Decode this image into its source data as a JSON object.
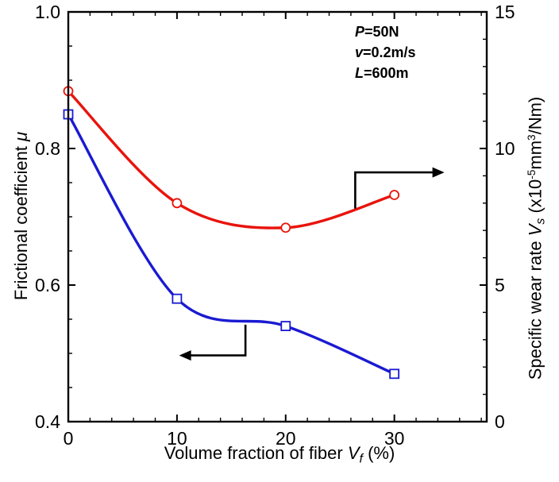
{
  "colors": {
    "friction": "#1a1ad2",
    "wear": "#e8140c",
    "axis": "#000000"
  },
  "conditions": {
    "lines": [
      {
        "sym": "P",
        "rest": "=50N"
      },
      {
        "sym": "v",
        "rest": "=0.2m/s"
      },
      {
        "sym": "L",
        "rest": "=600m"
      }
    ]
  },
  "axes": {
    "x": {
      "title": "Volume fraction of fiber",
      "var": "V",
      "var_sub": "f",
      "unit": "(%)",
      "min": 0,
      "max": 38.5,
      "minor_step": 2,
      "ticks": [
        {
          "v": 0,
          "label": "0"
        },
        {
          "v": 10,
          "label": "10"
        },
        {
          "v": 20,
          "label": "20"
        },
        {
          "v": 30,
          "label": "30"
        }
      ]
    },
    "y_left": {
      "title": "Frictional coefficient",
      "symbol": "μ",
      "min": 0.4,
      "max": 1.0,
      "minor_step": 0.05,
      "ticks": [
        {
          "v": 0.4,
          "label": "0.4"
        },
        {
          "v": 0.6,
          "label": "0.6"
        },
        {
          "v": 0.8,
          "label": "0.8"
        },
        {
          "v": 1.0,
          "label": "1.0"
        }
      ]
    },
    "y_right": {
      "title": "Specific wear rate",
      "var": "V",
      "var_sub": "s",
      "unit_open": "(x10",
      "exp": "-5",
      "unit_mid": "mm",
      "exp2": "3",
      "unit_close": "/Nm)",
      "min": 0,
      "max": 15,
      "minor_step": 1,
      "ticks": [
        {
          "v": 0,
          "label": "0"
        },
        {
          "v": 5,
          "label": "5"
        },
        {
          "v": 10,
          "label": "10"
        },
        {
          "v": 15,
          "label": "15"
        }
      ]
    }
  },
  "chart_data": {
    "type": "line",
    "title": "",
    "xlabel": "Volume fraction of fiber Vf (%)",
    "ylabel_left": "Frictional coefficient μ",
    "ylabel_right": "Specific wear rate Vs (x10-5 mm3/Nm)",
    "xlim": [
      0,
      38.5
    ],
    "ylim_left": [
      0.4,
      1.0
    ],
    "ylim_right": [
      0,
      15
    ],
    "x": [
      0,
      10,
      20,
      30
    ],
    "series": [
      {
        "name": "Frictional coefficient",
        "axis": "left",
        "marker": "square",
        "color_key": "friction",
        "values": [
          0.85,
          0.58,
          0.54,
          0.47
        ]
      },
      {
        "name": "Specific wear rate",
        "axis": "right",
        "marker": "circle",
        "color_key": "wear",
        "values": [
          12.1,
          8.0,
          7.1,
          8.3
        ]
      }
    ],
    "annotations": [
      "P=50N",
      "v=0.2m/s",
      "L=600m"
    ],
    "arrows": [
      {
        "target": "wear",
        "head": "right",
        "points_x": [
          26.4,
          26.4,
          34.6
        ],
        "points_mu": [
          0.712,
          0.765,
          0.765
        ]
      },
      {
        "target": "friction",
        "head": "left",
        "points_x": [
          16.3,
          16.3,
          10.2
        ],
        "points_mu": [
          0.542,
          0.497,
          0.497
        ]
      }
    ]
  }
}
